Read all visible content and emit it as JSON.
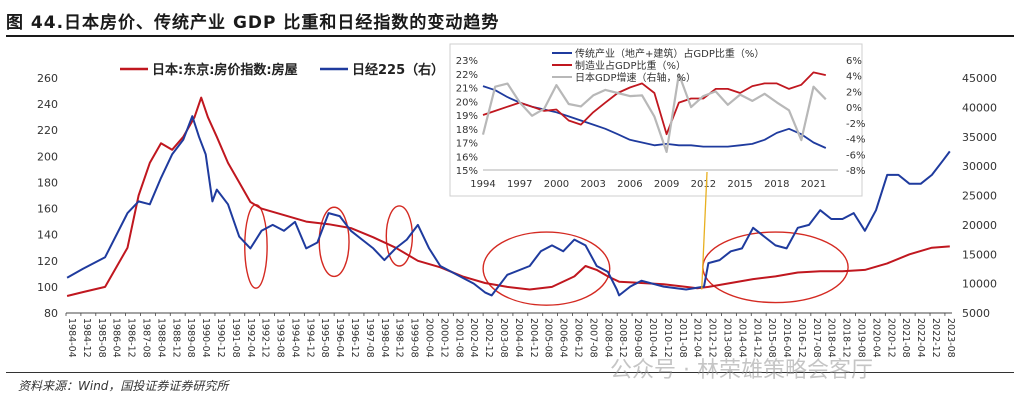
{
  "title": "图 44.日本房价、传统产业 GDP 比重和日经指数的变动趋势",
  "source": "资料来源：Wind，国投证券证券研究所",
  "watermark": "公众号 · 林荣雄策略会客厅",
  "colors": {
    "red": "#c0171f",
    "blue": "#1f3b9e",
    "gray": "#b8b8b8",
    "circle": "#d42a22",
    "arrow": "#e8b020"
  },
  "chart_data": [
    {
      "type": "line",
      "legend_placement": "top-left",
      "left_axis": {
        "ylim": [
          80,
          260
        ],
        "ticks": [
          80,
          100,
          120,
          140,
          160,
          180,
          200,
          220,
          240,
          260
        ]
      },
      "right_axis": {
        "ylim": [
          5000,
          45000
        ],
        "ticks": [
          5000,
          10000,
          15000,
          20000,
          25000,
          30000,
          35000,
          40000,
          45000
        ]
      },
      "x_range": [
        1984.25,
        2023.9
      ],
      "x_labels": [
        "1984-04",
        "1984-12",
        "1985-08",
        "1986-04",
        "1986-12",
        "1987-08",
        "1988-04",
        "1988-12",
        "1989-08",
        "1990-04",
        "1990-12",
        "1991-08",
        "1992-04",
        "1992-12",
        "1993-08",
        "1994-04",
        "1994-12",
        "1995-08",
        "1996-04",
        "1996-12",
        "1997-08",
        "1998-04",
        "1998-12",
        "1999-08",
        "2000-04",
        "2000-12",
        "2001-08",
        "2002-04",
        "2002-12",
        "2003-08",
        "2004-04",
        "2004-12",
        "2005-08",
        "2006-04",
        "2006-12",
        "2007-08",
        "2008-04",
        "2008-12",
        "2009-08",
        "2010-04",
        "2010-12",
        "2011-08",
        "2012-04",
        "2012-12",
        "2013-08",
        "2014-04",
        "2014-12",
        "2015-08",
        "2016-04",
        "2016-12",
        "2017-08",
        "2018-04",
        "2018-12",
        "2019-08",
        "2020-04",
        "2020-12",
        "2021-08",
        "2022-04",
        "2022-12",
        "2023-08"
      ],
      "series": [
        {
          "name": "日本:东京:房价指数:房屋",
          "axis": "left",
          "x": [
            1984.3,
            1985,
            1986,
            1987,
            1987.5,
            1988,
            1988.5,
            1989,
            1989.5,
            1990,
            1990.3,
            1990.6,
            1991,
            1991.5,
            1992,
            1992.5,
            1993,
            1994,
            1995,
            1996,
            1997,
            1998,
            1999,
            2000,
            2001,
            2002,
            2003,
            2004,
            2005,
            2006,
            2007,
            2007.5,
            2008,
            2008.5,
            2009,
            2010,
            2011,
            2012,
            2012.5,
            2013,
            2014,
            2015,
            2016,
            2017,
            2018,
            2019,
            2020,
            2021,
            2022,
            2023,
            2023.8
          ],
          "values": [
            93,
            96,
            100,
            130,
            170,
            195,
            210,
            205,
            215,
            230,
            245,
            230,
            215,
            195,
            180,
            165,
            160,
            155,
            150,
            148,
            145,
            138,
            130,
            120,
            115,
            108,
            103,
            100,
            98,
            100,
            108,
            116,
            113,
            108,
            104,
            103,
            102,
            100,
            99,
            100,
            103,
            106,
            108,
            111,
            112,
            112,
            113,
            118,
            125,
            130,
            131
          ]
        },
        {
          "name": "日经225（右）",
          "axis": "right",
          "x": [
            1984.3,
            1985,
            1986,
            1987,
            1987.5,
            1988,
            1988.5,
            1989,
            1989.5,
            1989.9,
            1990.2,
            1990.5,
            1990.8,
            1991,
            1991.5,
            1992,
            1992.5,
            1993,
            1993.5,
            1994,
            1994.5,
            1995,
            1995.5,
            1996,
            1996.5,
            1997,
            1997.5,
            1998,
            1998.5,
            1999,
            1999.5,
            2000,
            2000.5,
            2001,
            2001.5,
            2002,
            2002.5,
            2003,
            2003.3,
            2004,
            2005,
            2005.5,
            2006,
            2006.5,
            2007,
            2007.5,
            2008,
            2008.5,
            2008.9,
            2009,
            2009.5,
            2010,
            2011,
            2012,
            2012.8,
            2013,
            2013.5,
            2014,
            2014.5,
            2015,
            2015.5,
            2016,
            2016.5,
            2017,
            2017.5,
            2018,
            2018.5,
            2019,
            2019.5,
            2020,
            2020.5,
            2021,
            2021.5,
            2022,
            2022.5,
            2023,
            2023.5,
            2023.8
          ],
          "values": [
            11000,
            12500,
            14500,
            22000,
            24000,
            23500,
            28000,
            32000,
            34500,
            38500,
            35000,
            32000,
            24000,
            26000,
            23500,
            18000,
            16000,
            19000,
            20000,
            19000,
            20500,
            16000,
            17000,
            22000,
            21500,
            19000,
            17500,
            16000,
            14000,
            16000,
            17500,
            20000,
            16000,
            13000,
            12000,
            11000,
            10000,
            8500,
            8000,
            11500,
            13000,
            15500,
            16500,
            15500,
            17500,
            16500,
            13000,
            12000,
            9000,
            8000,
            9500,
            10500,
            9500,
            9000,
            9500,
            13500,
            14000,
            15500,
            16000,
            19500,
            18000,
            16500,
            16000,
            19500,
            20000,
            22500,
            21000,
            21000,
            22000,
            19000,
            22500,
            28500,
            28500,
            27000,
            27000,
            28500,
            31000,
            32500
          ]
        }
      ],
      "circles": [
        {
          "period": "1992-04 to 1993-04",
          "ymin": 99,
          "ymax": 163
        },
        {
          "period": "1995-08 to 1996-12",
          "ymin": 108,
          "ymax": 161
        },
        {
          "period": "1998-08 to 1999-10",
          "ymin": 116,
          "ymax": 162
        },
        {
          "period": "2002-12 to 2008-08",
          "ymin": 86,
          "ymax": 142
        },
        {
          "period": "2012-10 to 2019-04",
          "ymin": 88,
          "ymax": 142
        }
      ]
    },
    {
      "type": "line",
      "inset": true,
      "legend_placement": "top-left",
      "left_axis": {
        "ylim": [
          15,
          23
        ],
        "ticks": [
          "15%",
          "16%",
          "17%",
          "18%",
          "19%",
          "20%",
          "21%",
          "22%",
          "23%"
        ]
      },
      "right_axis": {
        "ylim": [
          -8,
          6
        ],
        "ticks": [
          "-8%",
          "-6%",
          "-4%",
          "-2%",
          "0%",
          "2%",
          "4%",
          "6%"
        ]
      },
      "x_range": [
        1994,
        2023
      ],
      "x_ticks": [
        "1994",
        "1997",
        "2000",
        "2003",
        "2006",
        "2009",
        "2012",
        "2015",
        "2018",
        "2021"
      ],
      "series": [
        {
          "name": "传统产业（地产+建筑）占GDP比重（%）",
          "axis": "left",
          "x": [
            1994,
            1995,
            1996,
            1997,
            1998,
            1999,
            2000,
            2001,
            2002,
            2003,
            2004,
            2005,
            2006,
            2007,
            2008,
            2009,
            2010,
            2011,
            2012,
            2013,
            2014,
            2015,
            2016,
            2017,
            2018,
            2019,
            2020,
            2021,
            2022
          ],
          "values": [
            21.1,
            20.8,
            20.3,
            19.9,
            19.6,
            19.4,
            19.2,
            18.9,
            18.6,
            18.3,
            18.0,
            17.6,
            17.2,
            17.0,
            16.8,
            16.9,
            16.8,
            16.8,
            16.7,
            16.7,
            16.7,
            16.8,
            16.9,
            17.2,
            17.7,
            18.0,
            17.6,
            17.0,
            16.6
          ]
        },
        {
          "name": "制造业占GDP比重（%）",
          "axis": "left",
          "x": [
            1994,
            1995,
            1996,
            1997,
            1998,
            1999,
            2000,
            2001,
            2002,
            2003,
            2004,
            2005,
            2006,
            2007,
            2008,
            2009,
            2010,
            2011,
            2012,
            2013,
            2014,
            2015,
            2016,
            2017,
            2018,
            2019,
            2020,
            2021,
            2022
          ],
          "values": [
            19.0,
            19.3,
            19.6,
            19.9,
            19.6,
            19.3,
            19.4,
            18.6,
            18.3,
            19.2,
            19.9,
            20.6,
            21.0,
            21.3,
            20.6,
            17.6,
            19.9,
            20.2,
            20.2,
            20.9,
            20.9,
            20.6,
            21.1,
            21.3,
            21.3,
            20.9,
            21.2,
            22.1,
            21.9
          ]
        },
        {
          "name": "日本GDP增速（右轴，%）",
          "axis": "right",
          "x": [
            1994,
            1995,
            1996,
            1997,
            1998,
            1999,
            2000,
            2001,
            2002,
            2003,
            2004,
            2005,
            2006,
            2007,
            2008,
            2009,
            2010,
            2011,
            2012,
            2013,
            2014,
            2015,
            2016,
            2017,
            2018,
            2019,
            2020,
            2021,
            2022
          ],
          "values": [
            -3.5,
            2.6,
            3.0,
            0.6,
            -1.1,
            -0.2,
            2.8,
            0.4,
            0.1,
            1.5,
            2.2,
            1.8,
            1.4,
            1.5,
            -1.2,
            -5.7,
            4.2,
            0.0,
            1.4,
            2.0,
            0.3,
            1.6,
            0.8,
            1.7,
            0.6,
            -0.4,
            -4.2,
            2.6,
            1.0
          ]
        }
      ]
    }
  ]
}
